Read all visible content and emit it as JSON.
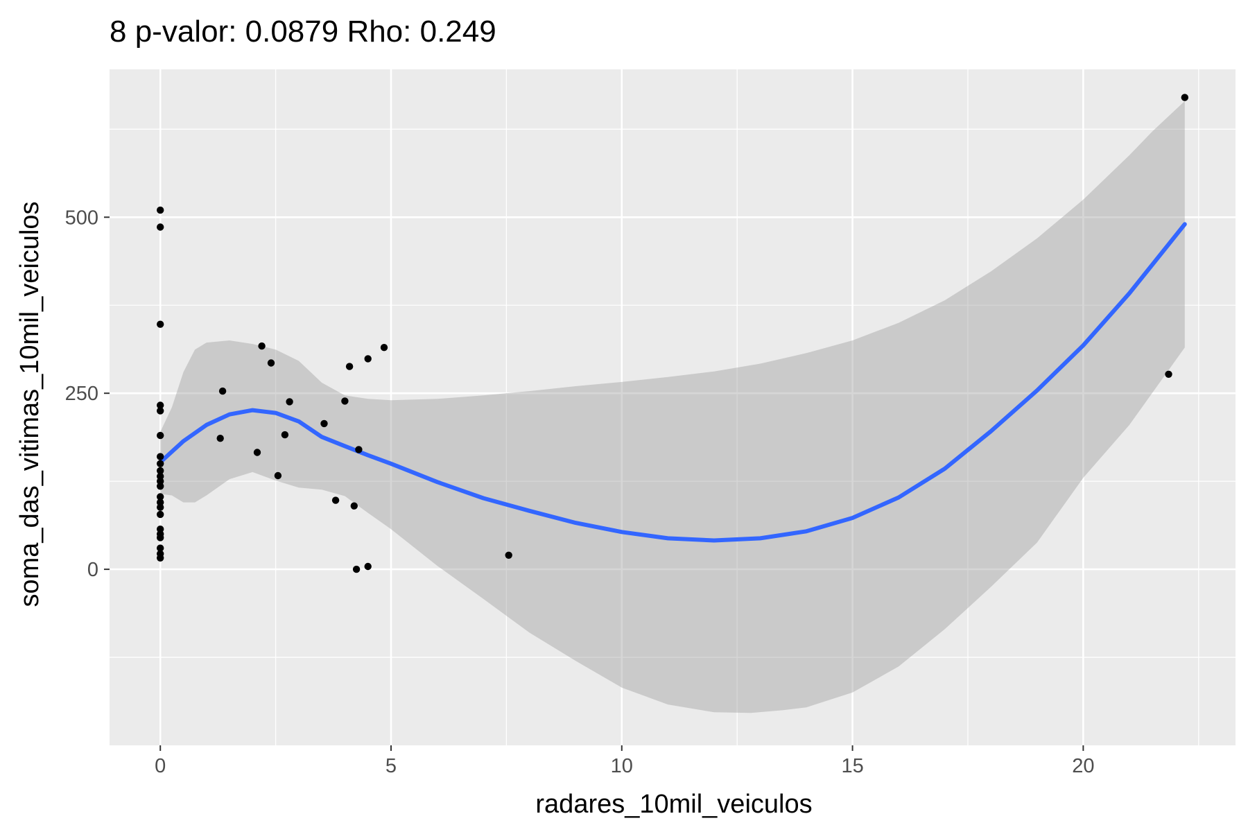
{
  "chart_data": {
    "type": "scatter",
    "title": "8 p-valor: 0.0879 Rho: 0.249",
    "xlabel": "radares_10mil_veiculos",
    "ylabel": "soma_das_vitimas_10mil_veiculos",
    "xlim": [
      -1.1,
      23.3
    ],
    "ylim": [
      -250,
      710
    ],
    "x_ticks": [
      0,
      5,
      10,
      15,
      20
    ],
    "y_ticks": [
      0,
      250,
      500
    ],
    "x_minor_ticks": [
      2.5,
      7.5,
      12.5,
      17.5,
      22.5
    ],
    "y_minor_ticks": [
      -125,
      125,
      375,
      625
    ],
    "grid": true,
    "legend": "none",
    "colors": {
      "panel": "#ebebeb",
      "grid": "#ffffff",
      "points": "#000000",
      "smooth_line": "#3366ff",
      "confidence_band": "#999999"
    },
    "series": [
      {
        "type": "scatter",
        "points": [
          [
            0,
            510
          ],
          [
            0,
            486
          ],
          [
            0,
            348
          ],
          [
            0,
            233
          ],
          [
            0,
            225
          ],
          [
            0,
            190
          ],
          [
            0,
            160
          ],
          [
            0,
            150
          ],
          [
            0,
            140
          ],
          [
            0,
            132
          ],
          [
            0,
            125
          ],
          [
            0,
            118
          ],
          [
            0,
            103
          ],
          [
            0,
            95
          ],
          [
            0,
            88
          ],
          [
            0,
            78
          ],
          [
            0,
            57
          ],
          [
            0,
            50
          ],
          [
            0,
            45
          ],
          [
            0,
            30
          ],
          [
            0,
            22
          ],
          [
            0,
            16
          ],
          [
            1.3,
            186
          ],
          [
            1.35,
            253
          ],
          [
            2.1,
            166
          ],
          [
            2.2,
            317
          ],
          [
            2.4,
            293
          ],
          [
            2.55,
            133
          ],
          [
            2.7,
            191
          ],
          [
            2.8,
            238
          ],
          [
            3.55,
            207
          ],
          [
            3.8,
            98
          ],
          [
            4.0,
            239
          ],
          [
            4.1,
            288
          ],
          [
            4.2,
            90
          ],
          [
            4.25,
            0
          ],
          [
            4.3,
            170
          ],
          [
            4.5,
            4
          ],
          [
            4.5,
            299
          ],
          [
            4.85,
            315
          ],
          [
            7.55,
            20
          ],
          [
            21.85,
            277
          ],
          [
            22.2,
            670
          ]
        ]
      },
      {
        "type": "line",
        "points": [
          [
            0,
            152
          ],
          [
            0.5,
            182
          ],
          [
            1.0,
            205
          ],
          [
            1.5,
            220
          ],
          [
            2.0,
            226
          ],
          [
            2.5,
            222
          ],
          [
            3.0,
            210
          ],
          [
            3.5,
            188
          ],
          [
            4.0,
            175
          ],
          [
            4.5,
            162
          ],
          [
            5.0,
            150
          ],
          [
            6.0,
            124
          ],
          [
            7.0,
            101
          ],
          [
            8.0,
            83
          ],
          [
            9.0,
            66
          ],
          [
            10.0,
            53
          ],
          [
            11.0,
            44
          ],
          [
            12.0,
            41
          ],
          [
            13.0,
            44
          ],
          [
            14.0,
            54
          ],
          [
            15.0,
            73
          ],
          [
            16.0,
            102
          ],
          [
            17.0,
            143
          ],
          [
            18.0,
            196
          ],
          [
            19.0,
            254
          ],
          [
            20.0,
            318
          ],
          [
            21.0,
            392
          ],
          [
            22.2,
            490
          ]
        ]
      },
      {
        "type": "area",
        "upper": [
          [
            0,
            195
          ],
          [
            0.25,
            230
          ],
          [
            0.5,
            280
          ],
          [
            0.75,
            312
          ],
          [
            1.0,
            322
          ],
          [
            1.5,
            325
          ],
          [
            2.0,
            320
          ],
          [
            2.5,
            312
          ],
          [
            3.0,
            296
          ],
          [
            3.5,
            265
          ],
          [
            4.0,
            247
          ],
          [
            4.5,
            242
          ],
          [
            5.0,
            240
          ],
          [
            6.0,
            242
          ],
          [
            7.0,
            247
          ],
          [
            8.0,
            253
          ],
          [
            9.0,
            260
          ],
          [
            10.0,
            266
          ],
          [
            11.0,
            273
          ],
          [
            12.0,
            281
          ],
          [
            13.0,
            292
          ],
          [
            14.0,
            307
          ],
          [
            15.0,
            325
          ],
          [
            16.0,
            350
          ],
          [
            17.0,
            382
          ],
          [
            18.0,
            423
          ],
          [
            19.0,
            470
          ],
          [
            20.0,
            525
          ],
          [
            21.0,
            588
          ],
          [
            21.5,
            622
          ],
          [
            22.2,
            665
          ]
        ],
        "lower": [
          [
            0,
            107
          ],
          [
            0.25,
            105
          ],
          [
            0.5,
            95
          ],
          [
            0.75,
            95
          ],
          [
            1.0,
            105
          ],
          [
            1.5,
            128
          ],
          [
            2.0,
            138
          ],
          [
            2.5,
            126
          ],
          [
            3.0,
            116
          ],
          [
            3.5,
            113
          ],
          [
            4.0,
            104
          ],
          [
            4.5,
            80
          ],
          [
            5.0,
            57
          ],
          [
            6.0,
            5
          ],
          [
            7.0,
            -42
          ],
          [
            8.0,
            -90
          ],
          [
            9.0,
            -130
          ],
          [
            10.0,
            -168
          ],
          [
            11.0,
            -192
          ],
          [
            12.0,
            -203
          ],
          [
            12.8,
            -204
          ],
          [
            13.5,
            -200
          ],
          [
            14.0,
            -196
          ],
          [
            15.0,
            -175
          ],
          [
            16.0,
            -138
          ],
          [
            17.0,
            -85
          ],
          [
            18.0,
            -25
          ],
          [
            19.0,
            38
          ],
          [
            20.0,
            130
          ],
          [
            21.0,
            205
          ],
          [
            22.2,
            315
          ]
        ]
      }
    ]
  }
}
